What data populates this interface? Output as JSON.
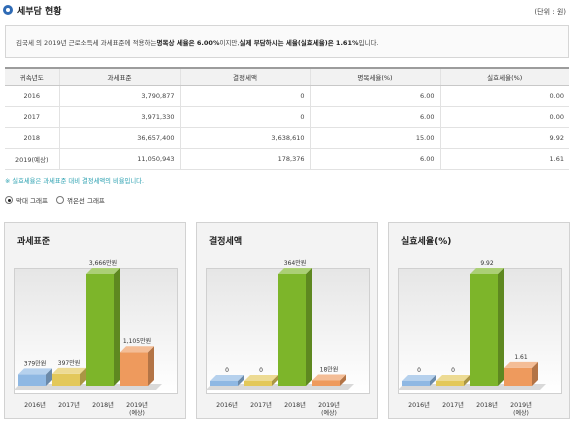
{
  "page": {
    "title": "세부담 현황",
    "unit": "(단위 : 원)"
  },
  "note": {
    "prefix": "김국세 의 2019년 근로소득세 과세표준에 적용하는 ",
    "bold1": "명목상 세율은 6.00%",
    "middle": "이지만, ",
    "bold2": "실제 부담하시는 세율(실효세율)은 1.61%",
    "suffix": "입니다."
  },
  "table": {
    "headers": [
      "귀속년도",
      "과세표준",
      "결정세액",
      "명목세율(%)",
      "실효세율(%)"
    ],
    "rows": [
      [
        "2016",
        "3,790,877",
        "0",
        "6.00",
        "0.00"
      ],
      [
        "2017",
        "3,971,330",
        "0",
        "6.00",
        "0.00"
      ],
      [
        "2018",
        "36,657,400",
        "3,638,610",
        "15.00",
        "9.92"
      ],
      [
        "2019(예상)",
        "11,050,943",
        "178,376",
        "6.00",
        "1.61"
      ]
    ]
  },
  "footnote": "※ 실효세율은 과세표준 대비 결정세액의 비율입니다.",
  "graph_options": {
    "bar_label": "막대 그래프",
    "line_label": "꺾은선 그래프",
    "selected": "bar"
  },
  "colors": {
    "bar_2016": "#8fb8e3",
    "bar_2017": "#e3c85a",
    "bar_2018": "#7db52a",
    "bar_2019": "#ee9a5d",
    "title_icon": "#2f6bb5",
    "footnote": "#2aa0b0"
  },
  "chart_data": [
    {
      "type": "bar",
      "title": "과세표준",
      "categories": [
        "2016년",
        "2017년",
        "2018년",
        "2019년"
      ],
      "category_notes": [
        "",
        "",
        "",
        "(예상)"
      ],
      "values": [
        379,
        397,
        3666,
        1105
      ],
      "value_labels": [
        "379만원",
        "397만원",
        "3,666만원",
        "1,105만원"
      ],
      "ylim": [
        0,
        3666
      ]
    },
    {
      "type": "bar",
      "title": "결정세액",
      "categories": [
        "2016년",
        "2017년",
        "2018년",
        "2019년"
      ],
      "category_notes": [
        "",
        "",
        "",
        "(예상)"
      ],
      "values": [
        0,
        0,
        364,
        18
      ],
      "value_labels": [
        "0",
        "0",
        "364만원",
        "18만원"
      ],
      "ylim": [
        0,
        364
      ]
    },
    {
      "type": "bar",
      "title": "실효세율(%)",
      "categories": [
        "2016년",
        "2017년",
        "2018년",
        "2019년"
      ],
      "category_notes": [
        "",
        "",
        "",
        "(예상)"
      ],
      "values": [
        0,
        0,
        9.92,
        1.61
      ],
      "value_labels": [
        "0",
        "0",
        "9.92",
        "1.61"
      ],
      "ylim": [
        0,
        9.92
      ]
    }
  ]
}
